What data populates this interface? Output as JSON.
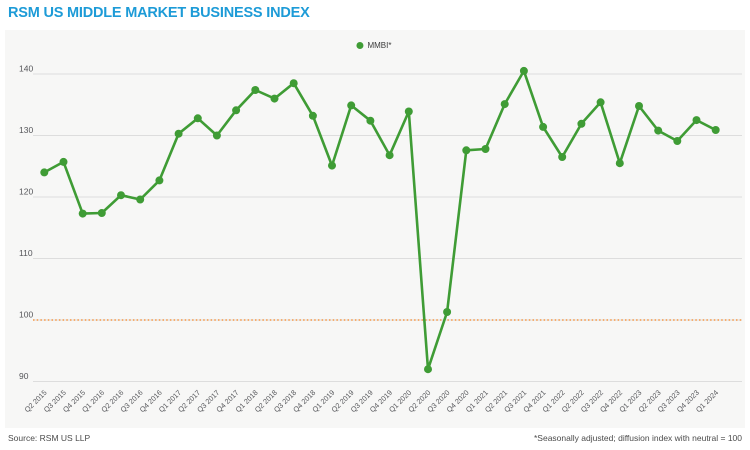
{
  "header": {
    "title": "RSM US MIDDLE MARKET BUSINESS INDEX"
  },
  "chart_data": {
    "type": "line",
    "title": "RSM US MIDDLE MARKET BUSINESS INDEX",
    "legend": "MMBI*",
    "legend_position": "top-center",
    "grid": true,
    "ylim": [
      87,
      143
    ],
    "yticks": [
      90,
      100,
      110,
      120,
      130,
      140
    ],
    "neutral_line": {
      "value": 100,
      "color": "#f58220",
      "style": "dotted"
    },
    "line_color": "#3f9c35",
    "categories": [
      "Q2 2015",
      "Q3 2015",
      "Q4 2015",
      "Q1 2016",
      "Q2 2016",
      "Q3 2016",
      "Q4 2016",
      "Q1 2017",
      "Q2 2017",
      "Q3 2017",
      "Q4 2017",
      "Q1 2018",
      "Q2 2018",
      "Q3 2018",
      "Q4 2018",
      "Q1 2019",
      "Q2 2019",
      "Q3 2019",
      "Q4 2019",
      "Q1 2020",
      "Q2 2020",
      "Q3 2020",
      "Q4 2020",
      "Q1 2021",
      "Q2 2021",
      "Q3 2021",
      "Q4 2021",
      "Q1 2022",
      "Q2 2022",
      "Q3 2022",
      "Q4 2022",
      "Q1 2023",
      "Q2 2023",
      "Q3 2023",
      "Q4 2023",
      "Q1 2024"
    ],
    "values": [
      124.0,
      125.7,
      117.3,
      117.4,
      120.3,
      119.6,
      122.7,
      130.3,
      132.8,
      130.0,
      134.1,
      137.4,
      136.0,
      138.5,
      133.2,
      125.1,
      134.9,
      132.4,
      126.8,
      133.9,
      92.0,
      101.3,
      127.6,
      127.8,
      135.1,
      140.5,
      131.4,
      126.5,
      131.9,
      135.4,
      125.5,
      134.8,
      130.8,
      129.1,
      132.5,
      130.9
    ]
  },
  "footer": {
    "source": "Source: RSM US LLP",
    "note": "*Seasonally adjusted; diffusion index with neutral = 100"
  },
  "colors": {
    "title": "#1d9bd7",
    "line": "#3f9c35",
    "neutral": "#f58220",
    "panel_bg": "#f7f7f6",
    "grid": "#dddddd",
    "axis_text": "#55565a"
  }
}
